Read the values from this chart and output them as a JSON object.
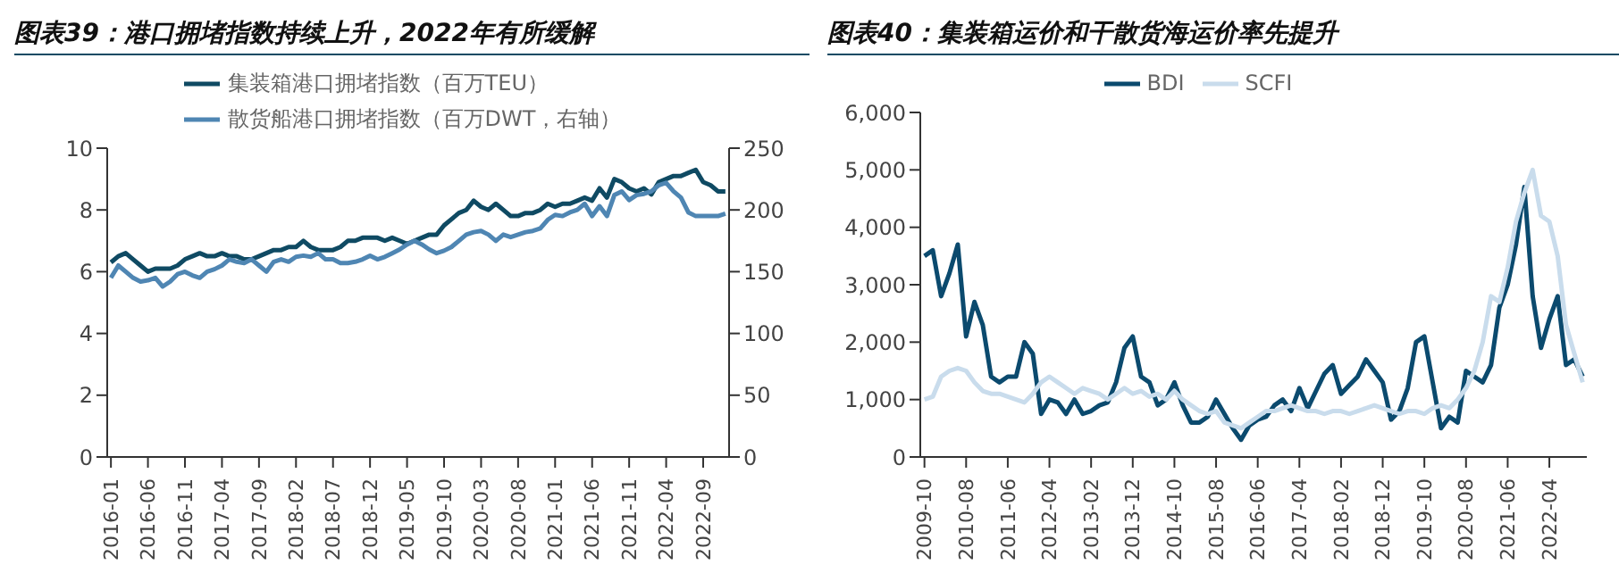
{
  "chart_data": [
    {
      "type": "line",
      "title": "图表39：港口拥堵指数持续上升，2022年有所缓解",
      "categories": [
        "2016-01",
        null,
        null,
        null,
        null,
        "2016-06",
        null,
        null,
        null,
        null,
        "2016-11",
        null,
        null,
        null,
        null,
        "2017-04",
        null,
        null,
        null,
        null,
        "2017-09",
        null,
        null,
        null,
        null,
        "2018-02",
        null,
        null,
        null,
        null,
        "2018-07",
        null,
        null,
        null,
        null,
        "2018-12",
        null,
        null,
        null,
        null,
        "2019-05",
        null,
        null,
        null,
        null,
        "2019-10",
        null,
        null,
        null,
        null,
        "2020-03",
        null,
        null,
        null,
        null,
        "2020-08",
        null,
        null,
        null,
        null,
        "2021-01",
        null,
        null,
        null,
        null,
        "2021-06",
        null,
        null,
        null,
        null,
        "2021-11",
        null,
        null,
        null,
        null,
        "2022-04",
        null,
        null,
        null,
        null,
        "2022-09",
        null,
        null,
        null
      ],
      "series": [
        {
          "name": "集装箱港口拥堵指数（百万TEU）",
          "color": "#0f4a63",
          "values": [
            6.3,
            6.5,
            6.6,
            6.4,
            6.2,
            6.0,
            6.1,
            6.1,
            6.1,
            6.2,
            6.4,
            6.5,
            6.6,
            6.5,
            6.5,
            6.6,
            6.5,
            6.5,
            6.4,
            6.4,
            6.5,
            6.6,
            6.7,
            6.7,
            6.8,
            6.8,
            7.0,
            6.8,
            6.7,
            6.7,
            6.7,
            6.8,
            7.0,
            7.0,
            7.1,
            7.1,
            7.1,
            7.0,
            7.1,
            7.0,
            6.9,
            7.0,
            7.1,
            7.2,
            7.2,
            7.5,
            7.7,
            7.9,
            8.0,
            8.3,
            8.1,
            8.0,
            8.2,
            8.0,
            7.8,
            7.8,
            7.9,
            7.9,
            8.0,
            8.2,
            8.1,
            8.2,
            8.2,
            8.3,
            8.4,
            8.3,
            8.7,
            8.4,
            9.0,
            8.9,
            8.7,
            8.6,
            8.7,
            8.5,
            8.9,
            9.0,
            9.1,
            9.1,
            9.2,
            9.3,
            8.9,
            8.8,
            8.6,
            8.6
          ]
        },
        {
          "name": "散货船港口拥堵指数（百万DWT，右轴）",
          "color": "#4f86b3",
          "axis": "y2",
          "values": [
            145,
            155,
            150,
            145,
            142,
            143,
            145,
            138,
            142,
            148,
            150,
            147,
            145,
            150,
            152,
            155,
            160,
            158,
            157,
            160,
            155,
            150,
            158,
            160,
            158,
            162,
            163,
            162,
            165,
            160,
            160,
            157,
            157,
            158,
            160,
            163,
            160,
            162,
            165,
            168,
            172,
            175,
            172,
            168,
            165,
            167,
            170,
            175,
            180,
            182,
            183,
            180,
            175,
            180,
            178,
            180,
            182,
            183,
            185,
            192,
            196,
            195,
            198,
            200,
            205,
            195,
            203,
            195,
            212,
            215,
            208,
            212,
            213,
            215,
            220,
            222,
            215,
            210,
            198,
            195,
            195,
            195,
            195,
            197
          ]
        }
      ],
      "ylim": [
        0,
        10
      ],
      "yticks": [
        0,
        2,
        4,
        6,
        8,
        10
      ],
      "y2lim": [
        0,
        250
      ],
      "y2ticks": [
        0,
        50,
        100,
        150,
        200,
        250
      ],
      "legend": "top",
      "grid": false,
      "marker": "none"
    },
    {
      "type": "line",
      "title": "图表40：集装箱运价和干散货海运价率先提升",
      "categories": [
        "2009-10",
        null,
        null,
        null,
        null,
        "2010-08",
        null,
        null,
        null,
        null,
        "2011-06",
        null,
        null,
        null,
        null,
        "2012-04",
        null,
        null,
        null,
        null,
        "2013-02",
        null,
        null,
        null,
        null,
        "2013-12",
        null,
        null,
        null,
        null,
        "2014-10",
        null,
        null,
        null,
        null,
        "2015-08",
        null,
        null,
        null,
        null,
        "2016-06",
        null,
        null,
        null,
        null,
        "2017-04",
        null,
        null,
        null,
        null,
        "2018-02",
        null,
        null,
        null,
        null,
        "2018-12",
        null,
        null,
        null,
        null,
        "2019-10",
        null,
        null,
        null,
        null,
        "2020-08",
        null,
        null,
        null,
        null,
        "2021-06",
        null,
        null,
        null,
        null,
        "2022-04",
        null,
        null,
        null,
        null
      ],
      "series": [
        {
          "name": "BDI",
          "color": "#0b4a6e",
          "values": [
            3500,
            3600,
            2800,
            3200,
            3700,
            2100,
            2700,
            2300,
            1400,
            1300,
            1400,
            1400,
            2000,
            1800,
            750,
            1000,
            950,
            750,
            1000,
            750,
            800,
            900,
            950,
            1300,
            1900,
            2100,
            1400,
            1300,
            900,
            1000,
            1300,
            900,
            600,
            600,
            700,
            1000,
            750,
            500,
            300,
            550,
            650,
            700,
            900,
            1000,
            800,
            1200,
            850,
            1150,
            1450,
            1600,
            1100,
            1250,
            1400,
            1700,
            1500,
            1300,
            650,
            800,
            1200,
            2000,
            2100,
            1300,
            500,
            700,
            600,
            1500,
            1400,
            1300,
            1600,
            2600,
            3000,
            3700,
            4700,
            2800,
            1900,
            2400,
            2800,
            1600,
            1700,
            1400
          ]
        },
        {
          "name": "SCFI",
          "color": "#c9dcec",
          "values": [
            1000,
            1050,
            1400,
            1500,
            1550,
            1500,
            1300,
            1150,
            1100,
            1100,
            1050,
            1000,
            950,
            1100,
            1300,
            1400,
            1300,
            1200,
            1100,
            1200,
            1150,
            1100,
            1000,
            1100,
            1200,
            1100,
            1150,
            1050,
            1100,
            1000,
            1150,
            1000,
            900,
            800,
            750,
            800,
            600,
            550,
            500,
            600,
            700,
            800,
            800,
            850,
            900,
            850,
            800,
            800,
            750,
            800,
            800,
            750,
            800,
            850,
            900,
            850,
            800,
            750,
            800,
            800,
            750,
            850,
            900,
            850,
            1000,
            1200,
            1500,
            2000,
            2800,
            2700,
            3300,
            4100,
            4600,
            5000,
            4200,
            4100,
            3500,
            2300,
            1800,
            1300
          ]
        }
      ],
      "ylim": [
        0,
        6000
      ],
      "yticks": [
        0,
        {
          "value": 1000,
          "label": "1,000"
        },
        {
          "value": 2000,
          "label": "2,000"
        },
        {
          "value": 3000,
          "label": "3,000"
        },
        {
          "value": 4000,
          "label": "4,000"
        },
        {
          "value": 5000,
          "label": "5,000"
        },
        {
          "value": 6000,
          "label": "6,000"
        }
      ],
      "legend": "top",
      "grid": false,
      "marker": "none"
    }
  ]
}
